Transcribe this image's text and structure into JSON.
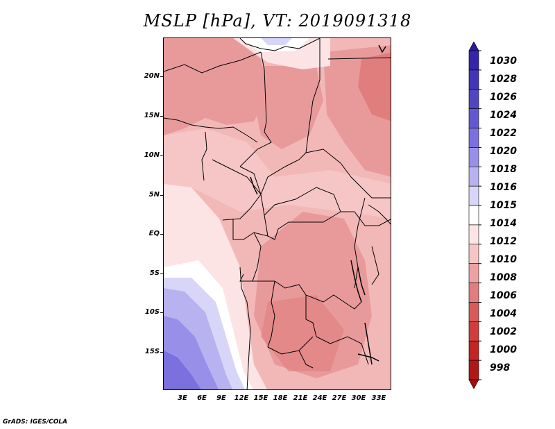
{
  "title": "MSLP [hPa], VT: 2019091318",
  "footer": "GrADS: IGES/COLA",
  "lat_labels": [
    "20N",
    "15N",
    "10N",
    "5N",
    "EQ",
    "5S",
    "10S",
    "15S"
  ],
  "lon_labels": [
    "3E",
    "6E",
    "9E",
    "12E",
    "15E",
    "18E",
    "21E",
    "24E",
    "27E",
    "30E",
    "33E"
  ],
  "colorbar": {
    "levels": [
      "1030",
      "1028",
      "1026",
      "1024",
      "1022",
      "1020",
      "1018",
      "1016",
      "1015",
      "1014",
      "1012",
      "1010",
      "1008",
      "1006",
      "1004",
      "1002",
      "1000",
      "998"
    ],
    "colors": [
      "#2a1a9a",
      "#3525aa",
      "#4335b8",
      "#5145c4",
      "#6458d2",
      "#7a70de",
      "#9890e8",
      "#b8b2f0",
      "#d8d6f8",
      "#ffffff",
      "#fde4e4",
      "#f6c6c6",
      "#eca2a2",
      "#e07e7e",
      "#d85a5a",
      "#d23c3c",
      "#c42424",
      "#b01818",
      "#a01010"
    ]
  },
  "map_colors": {
    "land_base": "#f2b8b8",
    "ocean_1012": "#fde4e4",
    "ocean_1014": "#ffffff",
    "ocean_1015": "#d8d6f8",
    "ocean_1016": "#b8b2f0",
    "ocean_1018": "#9890e8",
    "ocean_1020": "#7a70de",
    "low_1008": "#e89a9a",
    "low_1006": "#e07e7e",
    "border": "#000000"
  }
}
